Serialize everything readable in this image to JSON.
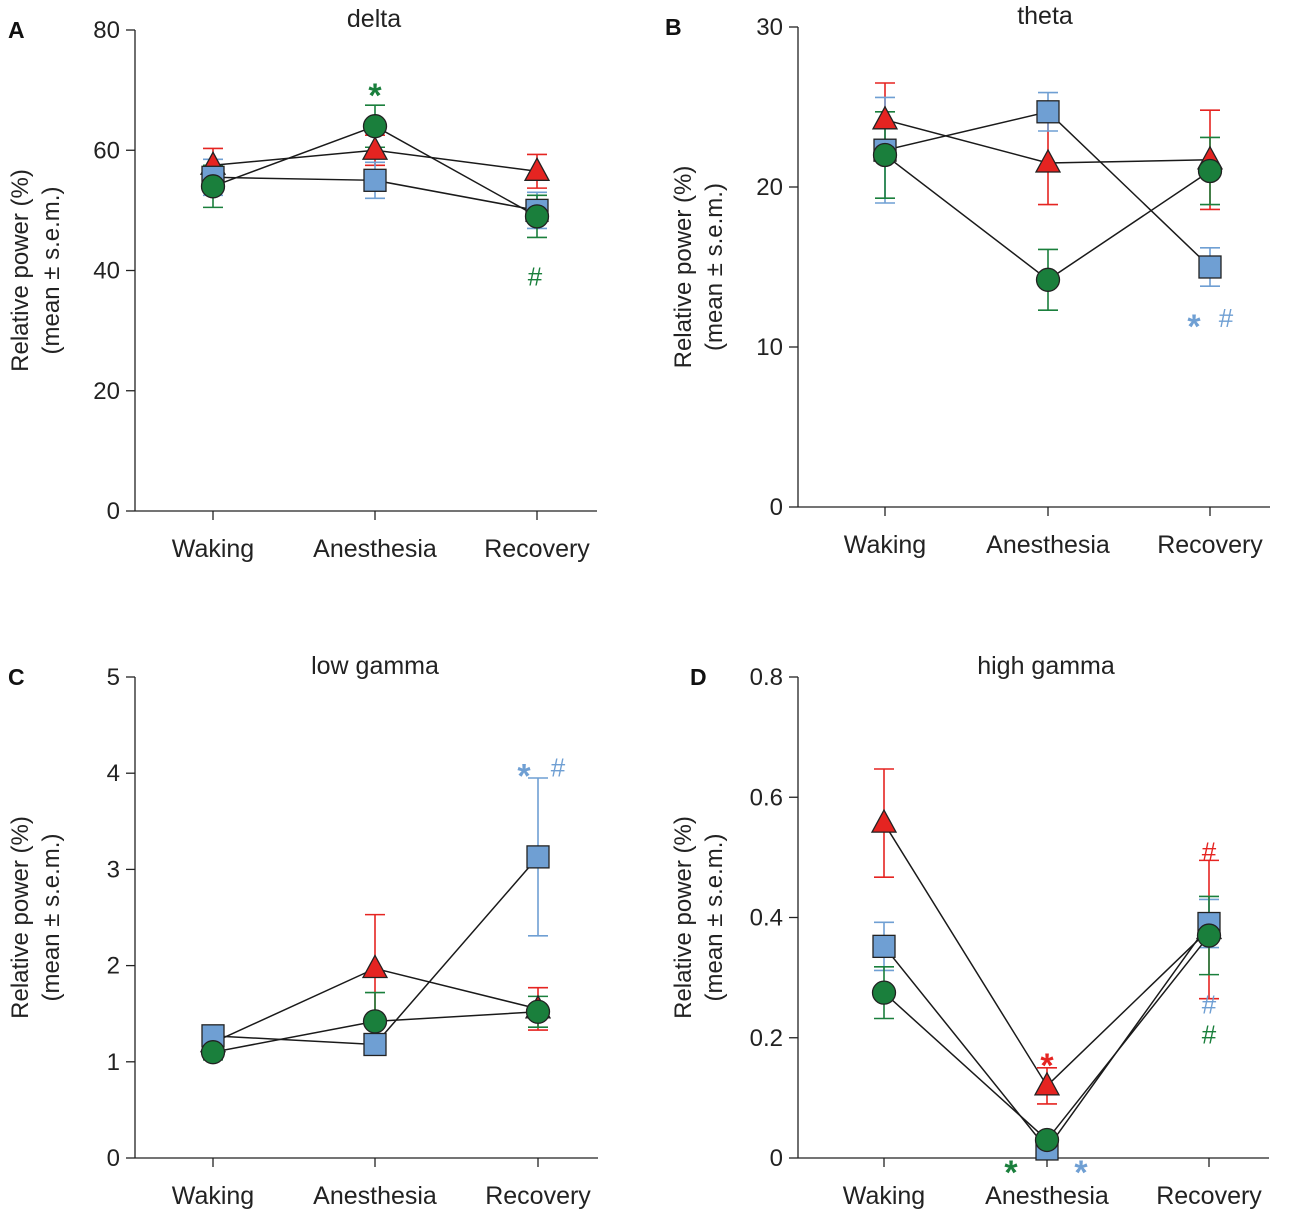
{
  "colors": {
    "red": "#e52421",
    "blue": "#6f9fd3",
    "green": "#1a7f3c",
    "axis": "#222222",
    "connect": "#1a1a1a"
  },
  "series_names": [
    "red-triangle",
    "blue-square",
    "green-circle"
  ],
  "chart_data": [
    {
      "panel": "A",
      "title": "delta",
      "type": "line",
      "ylabel": [
        "Relative power (%)",
        "(mean ± s.e.m.)"
      ],
      "categories": [
        "Waking",
        "Anesthesia",
        "Recovery"
      ],
      "ylim": [
        0,
        80
      ],
      "yticks": [
        0,
        20,
        40,
        60,
        80
      ],
      "ytick_labels": [
        "0",
        "20",
        "40",
        "60",
        "80"
      ],
      "series": [
        {
          "name": "red-triangle",
          "color": "#e52421",
          "marker": "triangle",
          "values": [
            57.5,
            60,
            56.5
          ],
          "err": [
            2.8,
            2.5,
            2.8
          ]
        },
        {
          "name": "blue-square",
          "color": "#6f9fd3",
          "marker": "square",
          "values": [
            55.5,
            55,
            50
          ],
          "err": [
            3,
            3,
            3
          ]
        },
        {
          "name": "green-circle",
          "color": "#1a7f3c",
          "marker": "circle",
          "values": [
            54,
            64,
            49
          ],
          "err": [
            3.5,
            3.5,
            3.5
          ]
        }
      ],
      "annotations": [
        {
          "text": "*",
          "color": "#1a7f3c",
          "cat": 1,
          "y": 70.5,
          "dx": 0
        },
        {
          "text": "#",
          "color": "#1a7f3c",
          "cat": 2,
          "y": 39,
          "dx": -2
        }
      ]
    },
    {
      "panel": "B",
      "title": "theta",
      "type": "line",
      "ylabel": [
        "Relative power (%)",
        "(mean ± s.e.m.)"
      ],
      "categories": [
        "Waking",
        "Anesthesia",
        "Recovery"
      ],
      "ylim": [
        0,
        30
      ],
      "yticks": [
        0,
        10,
        20,
        30
      ],
      "ytick_labels": [
        "0",
        "10",
        "20",
        "30"
      ],
      "series": [
        {
          "name": "red-triangle",
          "color": "#e52421",
          "marker": "triangle",
          "values": [
            24.2,
            21.5,
            21.7
          ],
          "err": [
            2.3,
            2.6,
            3.1
          ]
        },
        {
          "name": "blue-square",
          "color": "#6f9fd3",
          "marker": "square",
          "values": [
            22.3,
            24.7,
            15
          ],
          "err": [
            3.3,
            1.2,
            1.2
          ]
        },
        {
          "name": "green-circle",
          "color": "#1a7f3c",
          "marker": "circle",
          "values": [
            22,
            14.2,
            21
          ],
          "err": [
            2.7,
            1.9,
            2.1
          ]
        }
      ],
      "annotations": [
        {
          "text": "*",
          "color": "#6f9fd3",
          "cat": 2,
          "y": 11.8,
          "dx": -16
        },
        {
          "text": "#",
          "color": "#6f9fd3",
          "cat": 2,
          "y": 11.8,
          "dx": 16
        }
      ]
    },
    {
      "panel": "C",
      "title": "low gamma",
      "type": "line",
      "ylabel": [
        "Relative power (%)",
        "(mean ± s.e.m.)"
      ],
      "categories": [
        "Waking",
        "Anesthesia",
        "Recovery"
      ],
      "ylim": [
        0,
        5
      ],
      "yticks": [
        0,
        1,
        2,
        3,
        4,
        5
      ],
      "ytick_labels": [
        "0",
        "1",
        "2",
        "3",
        "4",
        "5"
      ],
      "series": [
        {
          "name": "red-triangle",
          "color": "#e52421",
          "marker": "triangle",
          "values": [
            1.2,
            1.97,
            1.55
          ],
          "err": [
            0.08,
            0.56,
            0.22
          ]
        },
        {
          "name": "blue-square",
          "color": "#6f9fd3",
          "marker": "square",
          "values": [
            1.27,
            1.18,
            3.13
          ],
          "err": [
            0.08,
            0.08,
            0.82
          ]
        },
        {
          "name": "green-circle",
          "color": "#1a7f3c",
          "marker": "circle",
          "values": [
            1.1,
            1.42,
            1.52
          ],
          "err": [
            0.08,
            0.3,
            0.16
          ]
        }
      ],
      "annotations": [
        {
          "text": "*",
          "color": "#6f9fd3",
          "cat": 2,
          "y": 4.06,
          "dx": -14
        },
        {
          "text": "#",
          "color": "#6f9fd3",
          "cat": 2,
          "y": 4.06,
          "dx": 20
        }
      ]
    },
    {
      "panel": "D",
      "title": "high gamma",
      "type": "line",
      "ylabel": [
        "Relative power (%)",
        "(mean ± s.e.m.)"
      ],
      "categories": [
        "Waking",
        "Anesthesia",
        "Recovery"
      ],
      "ylim": [
        0,
        0.8
      ],
      "yticks": [
        0,
        0.2,
        0.4,
        0.6,
        0.8
      ],
      "ytick_labels": [
        "0",
        "0.2",
        "0.4",
        "0.6",
        "0.8"
      ],
      "series": [
        {
          "name": "red-triangle",
          "color": "#e52421",
          "marker": "triangle",
          "values": [
            0.557,
            0.12,
            0.38
          ],
          "err": [
            0.09,
            0.03,
            0.115
          ]
        },
        {
          "name": "blue-square",
          "color": "#6f9fd3",
          "marker": "square",
          "values": [
            0.352,
            0.015,
            0.39
          ],
          "err": [
            0.04,
            0.01,
            0.04
          ]
        },
        {
          "name": "green-circle",
          "color": "#1a7f3c",
          "marker": "circle",
          "values": [
            0.275,
            0.03,
            0.37
          ],
          "err": [
            0.043,
            0.01,
            0.065
          ]
        }
      ],
      "annotations": [
        {
          "text": "*",
          "color": "#e52421",
          "cat": 1,
          "y": 0.168,
          "dx": 0
        },
        {
          "text": "*",
          "color": "#1a7f3c",
          "cat": 1,
          "y": -0.01,
          "dx": -36
        },
        {
          "text": "*",
          "color": "#6f9fd3",
          "cat": 1,
          "y": -0.01,
          "dx": 34
        },
        {
          "text": "#",
          "color": "#e52421",
          "cat": 2,
          "y": 0.51,
          "dx": 0
        },
        {
          "text": "#",
          "color": "#6f9fd3",
          "cat": 2,
          "y": 0.255,
          "dx": 0
        },
        {
          "text": "#",
          "color": "#1a7f3c",
          "cat": 2,
          "y": 0.205,
          "dx": 0
        }
      ]
    }
  ]
}
